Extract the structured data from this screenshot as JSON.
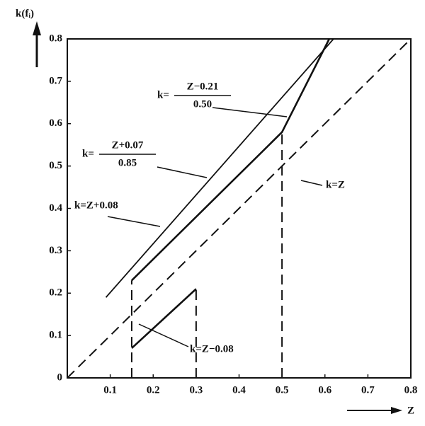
{
  "chart_data": {
    "type": "line",
    "x_label": "Z",
    "y_label": "k(fᵢ)",
    "xlim": [
      0,
      0.8
    ],
    "ylim": [
      0,
      0.8
    ],
    "xticks": [
      0.1,
      0.2,
      0.3,
      0.4,
      0.5,
      0.6,
      0.7,
      0.8
    ],
    "yticks": [
      0,
      0.1,
      0.2,
      0.3,
      0.4,
      0.5,
      0.6,
      0.7,
      0.8
    ],
    "color": "#111111",
    "series": [
      {
        "style": "dashed",
        "x": [
          0,
          0.8
        ],
        "y": [
          0,
          0.8
        ]
      },
      {
        "style": "thin",
        "x": [
          0.09,
          0.62
        ],
        "y": [
          0.19,
          0.8
        ]
      },
      {
        "style": "bold",
        "x": [
          0.15,
          0.5,
          0.61
        ],
        "y": [
          0.23,
          0.58,
          0.8
        ]
      },
      {
        "style": "dashed",
        "x": [
          0.15,
          0.15
        ],
        "y": [
          0,
          0.23
        ]
      },
      {
        "style": "dashed",
        "x": [
          0.5,
          0.5
        ],
        "y": [
          0,
          0.58
        ]
      },
      {
        "style": "bold",
        "x": [
          0.15,
          0.3
        ],
        "y": [
          0.07,
          0.21
        ]
      },
      {
        "style": "dashed",
        "x": [
          0.3,
          0.3
        ],
        "y": [
          0,
          0.21
        ]
      }
    ],
    "annotations": [
      {
        "prefix": "k=",
        "numerator": "Z−0.21",
        "denominator": "0.50"
      },
      {
        "prefix": "k=",
        "numerator": "Z+0.07",
        "denominator": "0.85"
      },
      {
        "text": "k=Z"
      },
      {
        "text": "k=Z+0.08"
      },
      {
        "text": "k=Z−0.08"
      }
    ]
  }
}
